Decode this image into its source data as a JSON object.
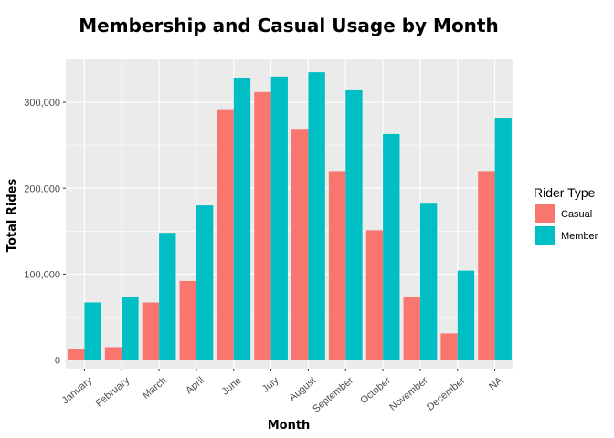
{
  "chart_data": {
    "type": "bar",
    "title": "Membership and Casual Usage by Month",
    "xlabel": "Month",
    "ylabel": "Total Rides",
    "categories": [
      "January",
      "February",
      "March",
      "April",
      "June",
      "July",
      "August",
      "September",
      "October",
      "November",
      "December",
      "NA"
    ],
    "series": [
      {
        "name": "Casual",
        "color": "#F8766D",
        "values": [
          13000,
          15000,
          67000,
          92000,
          292000,
          312000,
          269000,
          220000,
          151000,
          73000,
          31000,
          220000
        ]
      },
      {
        "name": "Member",
        "color": "#00BFC4",
        "values": [
          67000,
          73000,
          148000,
          180000,
          328000,
          330000,
          335000,
          314000,
          263000,
          182000,
          104000,
          282000
        ]
      }
    ],
    "ylim": [
      -10000,
      350000
    ],
    "yticks": [
      0,
      100000,
      200000,
      300000
    ],
    "ytick_labels": [
      "0",
      "100,000",
      "200,000",
      "300,000"
    ],
    "legend": {
      "title": "Rider Type",
      "position": "right"
    },
    "grid": true,
    "panel_background": "#EBEBEB"
  }
}
